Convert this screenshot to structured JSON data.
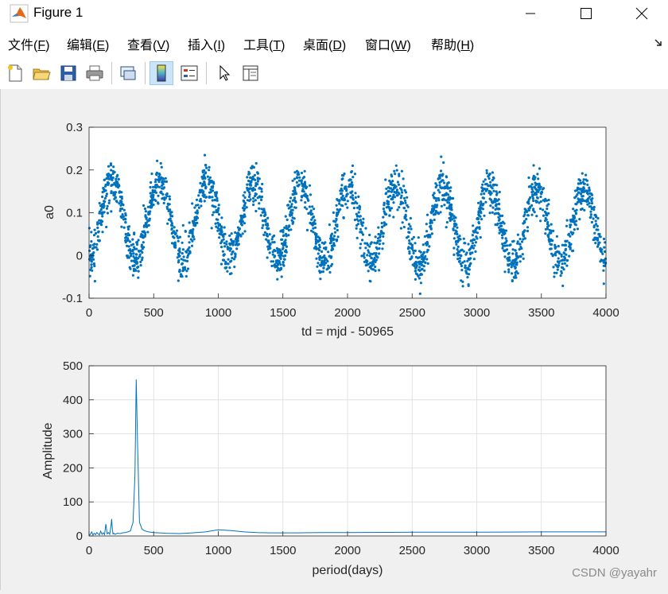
{
  "window": {
    "title": "Figure 1"
  },
  "menu": {
    "items": [
      {
        "text": "文件(",
        "key": "F",
        "tail": ")"
      },
      {
        "text": "编辑(",
        "key": "E",
        "tail": ")"
      },
      {
        "text": "查看(",
        "key": "V",
        "tail": ")"
      },
      {
        "text": "插入(",
        "key": "I",
        "tail": ")"
      },
      {
        "text": "工具(",
        "key": "T",
        "tail": ")"
      },
      {
        "text": "桌面(",
        "key": "D",
        "tail": ")"
      },
      {
        "text": "窗口(",
        "key": "W",
        "tail": ")"
      },
      {
        "text": "帮助(",
        "key": "H",
        "tail": ")"
      }
    ]
  },
  "toolbar": {
    "icons": [
      "new-file-icon",
      "open-folder-icon",
      "save-icon",
      "print-icon",
      "link-plot-icon",
      "colorbar-icon",
      "legend-icon",
      "pointer-icon",
      "property-inspector-icon"
    ]
  },
  "chart_data": [
    {
      "type": "scatter",
      "xlabel": "td = mjd - 50965",
      "ylabel": "a0",
      "xlim": [
        0,
        4000
      ],
      "ylim": [
        -0.1,
        0.3
      ],
      "xticks": [
        0,
        500,
        1000,
        1500,
        2000,
        2500,
        3000,
        3500,
        4000
      ],
      "yticks": [
        "-0.1",
        "0",
        "0.1",
        "0.2",
        "0.3"
      ],
      "grid": false,
      "color": "#0072bd",
      "model": {
        "period": 365.25,
        "mean": 0.085,
        "amplitude": 0.09,
        "trend_per_1000": -0.005,
        "noise": 0.025,
        "points": 2600
      }
    },
    {
      "type": "line",
      "xlabel": "period(days)",
      "ylabel": "Amplitude",
      "xlim": [
        0,
        4000
      ],
      "ylim": [
        0,
        500
      ],
      "xticks": [
        0,
        500,
        1000,
        1500,
        2000,
        2500,
        3000,
        3500,
        4000
      ],
      "yticks": [
        "0",
        "100",
        "200",
        "300",
        "400",
        "500"
      ],
      "grid": true,
      "color": "#0072bd",
      "series": [
        {
          "x": [
            2,
            10,
            20,
            30,
            40,
            50,
            60,
            70,
            80,
            90,
            100,
            110,
            120,
            130,
            140,
            150,
            160,
            170,
            175,
            180,
            185,
            190,
            200,
            220,
            240,
            260,
            280,
            300,
            320,
            340,
            355,
            365,
            375,
            390,
            410,
            430,
            460,
            500,
            600,
            700,
            800,
            900,
            1000,
            1100,
            1200,
            1300,
            1400,
            1600,
            1800,
            2000,
            2500,
            3000,
            3500,
            4000
          ],
          "y": [
            2,
            5,
            12,
            3,
            8,
            4,
            10,
            6,
            3,
            14,
            5,
            9,
            4,
            35,
            6,
            10,
            5,
            30,
            50,
            20,
            6,
            8,
            5,
            8,
            7,
            9,
            10,
            12,
            15,
            40,
            180,
            460,
            280,
            40,
            20,
            15,
            12,
            10,
            8,
            7,
            9,
            12,
            18,
            16,
            12,
            10,
            9,
            9,
            10,
            10,
            11,
            11,
            12,
            12
          ]
        }
      ]
    }
  ],
  "watermark": "CSDN @yayahr"
}
